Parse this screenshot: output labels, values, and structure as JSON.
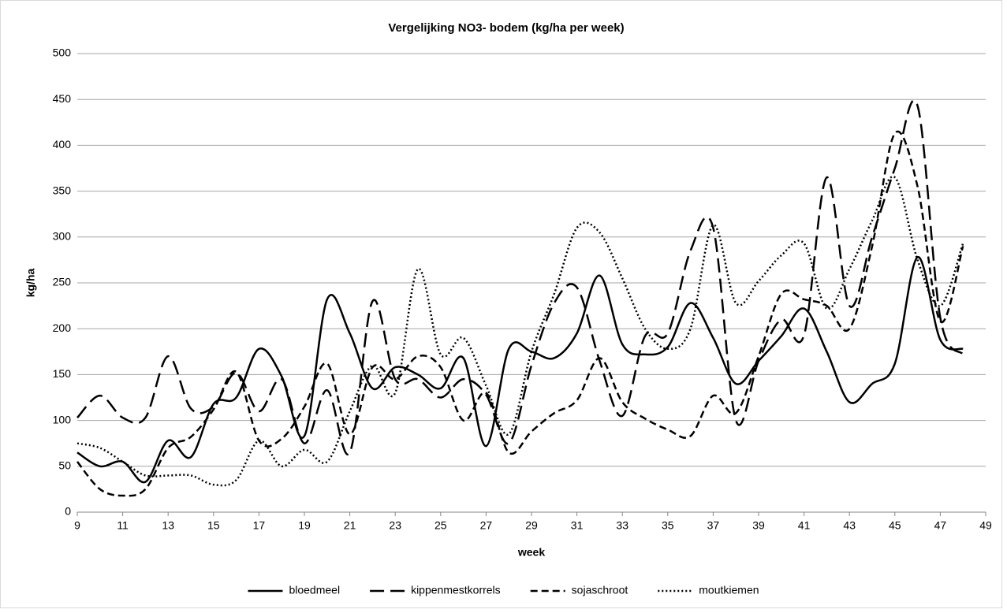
{
  "chart_data": {
    "type": "line",
    "smooth": true,
    "title": "Vergelijking NO3- bodem (kg/ha per week)",
    "x_label": "week",
    "y_label": "kg/ha",
    "x": [
      9,
      10,
      11,
      12,
      13,
      14,
      15,
      16,
      17,
      18,
      19,
      20,
      21,
      22,
      23,
      24,
      25,
      26,
      27,
      28,
      29,
      30,
      31,
      32,
      33,
      34,
      35,
      36,
      37,
      38,
      39,
      40,
      41,
      42,
      43,
      44,
      45,
      46,
      47,
      48
    ],
    "series": [
      {
        "name": "bloedmeel",
        "color": "#000000",
        "dash": "solid",
        "values": [
          65,
          50,
          55,
          33,
          78,
          60,
          118,
          125,
          178,
          148,
          83,
          232,
          195,
          135,
          158,
          150,
          135,
          168,
          72,
          178,
          175,
          168,
          195,
          258,
          183,
          172,
          180,
          228,
          190,
          140,
          165,
          192,
          222,
          175,
          120,
          140,
          162,
          278,
          188,
          178
        ]
      },
      {
        "name": "kippenmestkorrels",
        "color": "#000000",
        "dash": "long-dash",
        "values": [
          103,
          127,
          103,
          103,
          170,
          113,
          115,
          152,
          110,
          145,
          75,
          133,
          65,
          230,
          145,
          145,
          125,
          145,
          128,
          75,
          160,
          228,
          245,
          165,
          105,
          192,
          195,
          285,
          310,
          100,
          165,
          210,
          193,
          365,
          225,
          300,
          375,
          443,
          212,
          172
        ]
      },
      {
        "name": "sojaschroot",
        "color": "#000000",
        "dash": "short-dash",
        "values": [
          55,
          25,
          18,
          25,
          70,
          82,
          112,
          153,
          78,
          80,
          115,
          162,
          85,
          158,
          145,
          170,
          158,
          100,
          130,
          65,
          88,
          108,
          122,
          168,
          120,
          102,
          90,
          83,
          127,
          108,
          170,
          238,
          232,
          225,
          200,
          290,
          413,
          355,
          208,
          290
        ]
      },
      {
        "name": "moutkiemen",
        "color": "#000000",
        "dash": "dotted",
        "values": [
          75,
          70,
          55,
          40,
          40,
          40,
          30,
          35,
          78,
          50,
          68,
          55,
          110,
          160,
          130,
          265,
          172,
          190,
          138,
          85,
          175,
          238,
          310,
          305,
          255,
          200,
          178,
          200,
          313,
          228,
          252,
          280,
          293,
          222,
          265,
          318,
          365,
          275,
          225,
          293
        ]
      }
    ],
    "xlim": [
      9,
      49
    ],
    "xticks": [
      9,
      11,
      13,
      15,
      17,
      19,
      21,
      23,
      25,
      27,
      29,
      31,
      33,
      35,
      37,
      39,
      41,
      43,
      45,
      47,
      49
    ],
    "ylim": [
      0,
      500
    ],
    "yticks": [
      0,
      50,
      100,
      150,
      200,
      250,
      300,
      350,
      400,
      450,
      500
    ],
    "grid": true,
    "legend": "bottom"
  }
}
